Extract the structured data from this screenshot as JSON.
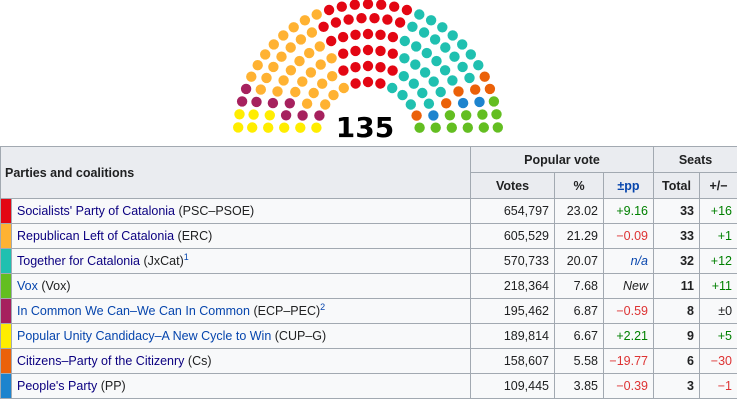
{
  "hemicycle": {
    "total": "135",
    "majority_colors": [
      {
        "party": "PSC–PSOE",
        "color": "#e30613",
        "seats": 33
      },
      {
        "party": "ERC",
        "color": "#ffb232",
        "seats": 33
      },
      {
        "party": "JxCat",
        "color": "#20c0b0",
        "seats": 32
      },
      {
        "party": "Vox",
        "color": "#63be21",
        "seats": 11
      },
      {
        "party": "ECP–PEC",
        "color": "#a6215e",
        "seats": 8
      },
      {
        "party": "CUP–G",
        "color": "#ffed00",
        "seats": 9
      },
      {
        "party": "Cs",
        "color": "#eb6109",
        "seats": 6
      },
      {
        "party": "PP",
        "color": "#1d84ce",
        "seats": 3
      }
    ]
  },
  "table": {
    "parties_header": "Parties and coalitions",
    "popular_vote_header": "Popular vote",
    "seats_header": "Seats",
    "votes_header": "Votes",
    "percent_header": "%",
    "pp_header": "±pp",
    "total_header": "Total",
    "change_header": "+/−",
    "rows": [
      {
        "color": "#e30613",
        "name": "Socialists' Party of Catalonia",
        "abbr": "(PSC–PSOE)",
        "sup": "",
        "link": "dark",
        "votes": "654,797",
        "pct": "23.02",
        "pp": "+9.16",
        "pp_cls": "pos",
        "total": "33",
        "change": "+16",
        "change_cls": "pos"
      },
      {
        "color": "#ffb232",
        "name": "Republican Left of Catalonia",
        "abbr": "(ERC)",
        "sup": "",
        "link": "dark",
        "votes": "605,529",
        "pct": "21.29",
        "pp": "−0.09",
        "pp_cls": "neg",
        "total": "33",
        "change": "+1",
        "change_cls": "pos"
      },
      {
        "color": "#20c0b0",
        "name": "Together for Catalonia",
        "abbr": "(JxCat)",
        "sup": "1",
        "link": "dark",
        "votes": "570,733",
        "pct": "20.07",
        "pp": "n/a",
        "pp_cls": "ital link-blue",
        "total": "32",
        "change": "+12",
        "change_cls": "pos"
      },
      {
        "color": "#63be21",
        "name": "Vox",
        "abbr": "(Vox)",
        "sup": "",
        "link": "blue",
        "votes": "218,364",
        "pct": "7.68",
        "pp": "New",
        "pp_cls": "ital",
        "total": "11",
        "change": "+11",
        "change_cls": "pos"
      },
      {
        "color": "#a6215e",
        "name": "In Common We Can–We Can In Common",
        "abbr": "(ECP–PEC)",
        "sup": "2",
        "link": "blue",
        "votes": "195,462",
        "pct": "6.87",
        "pp": "−0.59",
        "pp_cls": "neg",
        "total": "8",
        "change": "±0",
        "change_cls": ""
      },
      {
        "color": "#ffed00",
        "name": "Popular Unity Candidacy–A New Cycle to Win",
        "abbr": "(CUP–G)",
        "sup": "",
        "link": "blue",
        "votes": "189,814",
        "pct": "6.67",
        "pp": "+2.21",
        "pp_cls": "pos",
        "total": "9",
        "change": "+5",
        "change_cls": "pos"
      },
      {
        "color": "#eb6109",
        "name": "Citizens–Party of the Citizenry",
        "abbr": "(Cs)",
        "sup": "",
        "link": "dark",
        "votes": "158,607",
        "pct": "5.58",
        "pp": "−19.77",
        "pp_cls": "neg",
        "total": "6",
        "change": "−30",
        "change_cls": "neg"
      },
      {
        "color": "#1d84ce",
        "name": "People's Party",
        "abbr": "(PP)",
        "sup": "",
        "link": "dark",
        "votes": "109,445",
        "pct": "3.85",
        "pp": "−0.39",
        "pp_cls": "neg",
        "total": "3",
        "change": "−1",
        "change_cls": "neg"
      }
    ]
  }
}
